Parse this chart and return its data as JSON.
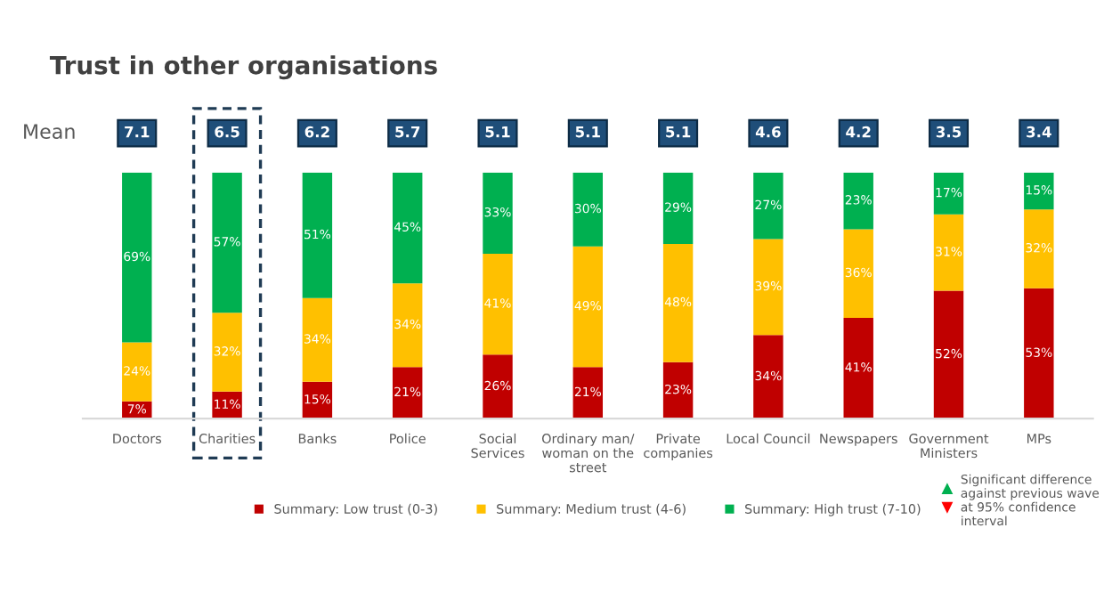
{
  "chart_data": {
    "type": "bar",
    "title": "Trust in other organisations",
    "stacked": true,
    "categories": [
      "Doctors",
      "Charities",
      "Banks",
      "Police",
      "Social Services",
      "Ordinary man/ woman on the street",
      "Private companies",
      "Local Council",
      "Newspapers",
      "Government Ministers",
      "MPs"
    ],
    "series": [
      {
        "name": "Summary: Low trust (0-3)",
        "color": "#c00000",
        "values": [
          7,
          11,
          15,
          21,
          26,
          21,
          23,
          34,
          41,
          52,
          53
        ],
        "value_labels": [
          "7%",
          "11%",
          "15%",
          "21%",
          "26%",
          "21%",
          "23%",
          "34%",
          "41%",
          "52%",
          "53%"
        ]
      },
      {
        "name": "Summary: Medium trust (4-6)",
        "color": "#ffc000",
        "values": [
          24,
          32,
          34,
          34,
          41,
          49,
          48,
          39,
          36,
          31,
          32
        ],
        "value_labels": [
          "24%",
          "32%",
          "34%",
          "34%",
          "41%",
          "49%",
          "48%",
          "39%",
          "36%",
          "31%",
          "32%"
        ]
      },
      {
        "name": "Summary: High trust (7-10)",
        "color": "#00b050",
        "values": [
          69,
          57,
          51,
          45,
          33,
          30,
          29,
          27,
          23,
          17,
          15
        ],
        "value_labels": [
          "69%",
          "57%",
          "51%",
          "45%",
          "33%",
          "30%",
          "29%",
          "27%",
          "23%",
          "17%",
          "15%"
        ]
      }
    ],
    "annotations": [
      "Mean",
      "7.1",
      "6.5",
      "6.2",
      "5.7",
      "5.1",
      "5.1",
      "5.1",
      "4.6",
      "4.2",
      "3.5",
      "3.4",
      "Significant difference against previous wave at 95% confidence interval"
    ],
    "legend": "bottom",
    "grid": false
  }
}
